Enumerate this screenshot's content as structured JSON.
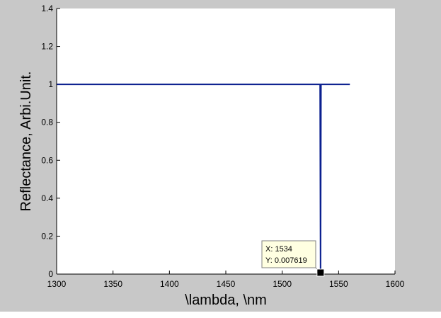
{
  "chart_data": {
    "type": "line",
    "title": "",
    "xlabel": "\\lambda, \\nm",
    "ylabel": "Reflectance, Arbi.Unit.",
    "xlim": [
      1300,
      1600
    ],
    "ylim": [
      0,
      1.4
    ],
    "xticks": [
      1300,
      1350,
      1400,
      1450,
      1500,
      1550,
      1600
    ],
    "yticks": [
      0,
      0.2,
      0.4,
      0.6,
      0.8,
      1,
      1.2,
      1.4
    ],
    "xtick_labels": [
      "1300",
      "1350",
      "1400",
      "1450",
      "1500",
      "1550",
      "1600"
    ],
    "ytick_labels": [
      "0",
      "0.2",
      "0.4",
      "0.6",
      "0.8",
      "1",
      "1.2",
      "1.4"
    ],
    "grid": false,
    "series": [
      {
        "color": "#0a1f8f",
        "x": [
          1300,
          1533.6,
          1534,
          1534.4,
          1560
        ],
        "y": [
          1,
          1,
          0.007619,
          1,
          1
        ]
      }
    ],
    "datatip": {
      "x_text": "X: 1534",
      "y_text": "Y: 0.007619",
      "x": 1534,
      "y": 0.007619
    }
  },
  "colors": {
    "figure_background": "#c8c8c8",
    "axes_background": "#ffffff",
    "line": "#0a1f8f",
    "datatip_background": "#ffffe1"
  }
}
